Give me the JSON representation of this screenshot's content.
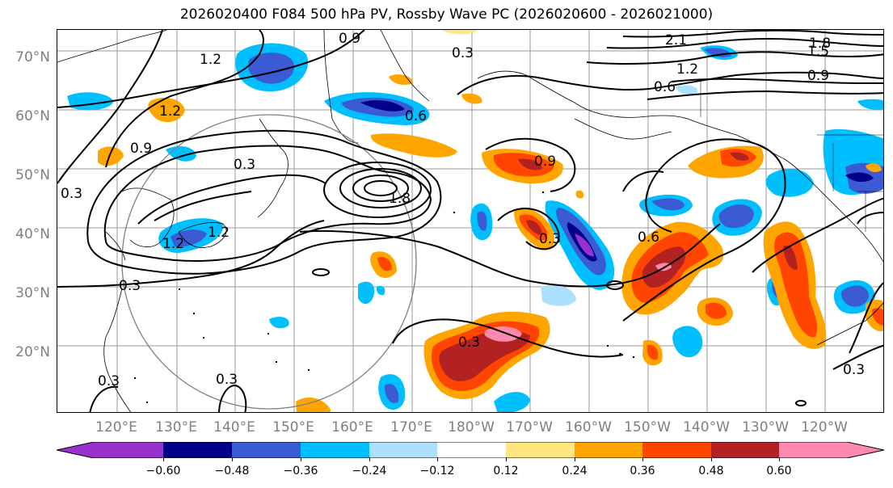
{
  "title": "2026020400 F084 500 hPa PV, Rossby Wave PC (2026020600 - 2026021000)",
  "lat_labels": [
    "70°N",
    "60°N",
    "50°N",
    "40°N",
    "30°N",
    "20°N"
  ],
  "lon_labels": [
    "120°E",
    "130°E",
    "140°E",
    "150°E",
    "160°E",
    "170°E",
    "180°W",
    "170°W",
    "160°W",
    "150°W",
    "140°W",
    "130°W",
    "120°W"
  ],
  "colorbar": {
    "ticks": [
      "−0.60",
      "−0.48",
      "−0.36",
      "−0.24",
      "−0.12",
      "0.12",
      "0.24",
      "0.36",
      "0.48",
      "0.60"
    ],
    "colors": [
      "#9932CC",
      "#00008B",
      "#3A5BD4",
      "#00BFFF",
      "#ADDFFF",
      "#FFFFFF",
      "#FFE680",
      "#FFA500",
      "#FF4500",
      "#B22222",
      "#FF88B0"
    ]
  },
  "contour_labels": [
    "1.2",
    "0.3",
    "2.1",
    "1.8",
    "1.5",
    "1.2",
    "0.6",
    "0.9",
    "0.6",
    "0.9",
    "1.2",
    "0.9",
    "0.3",
    "1.2",
    "1.8",
    "1.2",
    "0.3",
    "0.9",
    "0.3",
    "0.3",
    "0.3",
    "0.6",
    "0.3",
    "0.3",
    "0.3"
  ]
}
